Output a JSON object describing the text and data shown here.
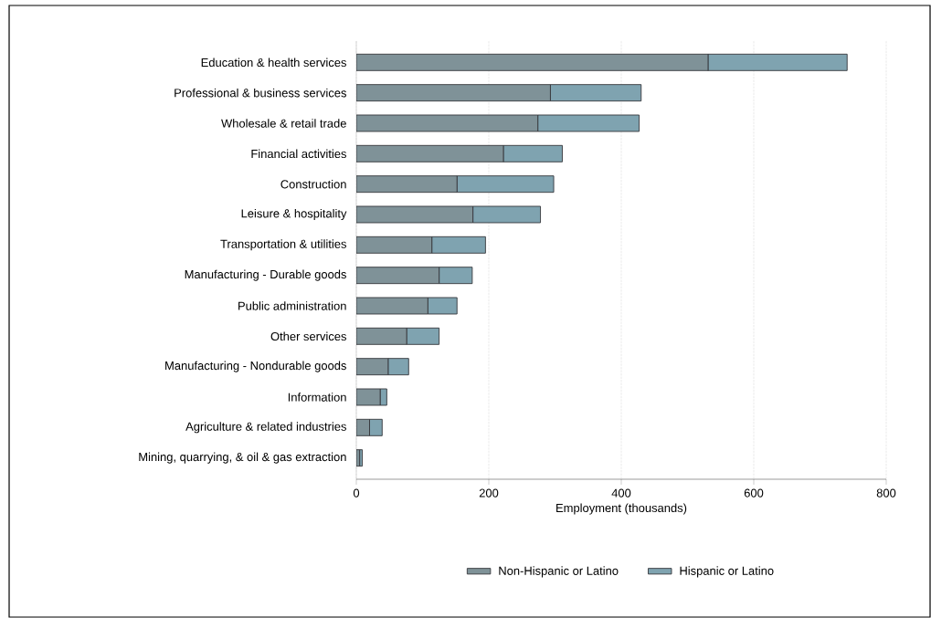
{
  "chart_data": {
    "type": "bar",
    "orientation": "horizontal",
    "stacked": true,
    "categories": [
      "Education & health services",
      "Professional & business services",
      "Wholesale & retail trade",
      "Financial activities",
      "Construction",
      "Leisure & hospitality",
      "Transportation & utilities",
      "Manufacturing - Durable goods",
      "Public administration",
      "Other services",
      "Manufacturing - Nondurable goods",
      "Information",
      "Agriculture & related industries",
      "Mining, quarrying, & oil & gas extraction"
    ],
    "series": [
      {
        "name": "Non-Hispanic or Latino",
        "color": "#7f9298",
        "values": [
          531,
          293,
          274,
          222,
          152,
          176,
          114,
          125,
          108,
          76,
          48,
          36,
          20,
          5
        ]
      },
      {
        "name": "Hispanic or Latino",
        "color": "#7fa3b0",
        "values": [
          210,
          137,
          153,
          89,
          146,
          102,
          81,
          50,
          44,
          49,
          31,
          10,
          19,
          4
        ]
      }
    ],
    "xlabel": "Employment (thousands)",
    "xlim": [
      0,
      800
    ],
    "xticks": [
      0,
      200,
      400,
      600,
      800
    ],
    "grid": "x",
    "legend": "bottom"
  }
}
